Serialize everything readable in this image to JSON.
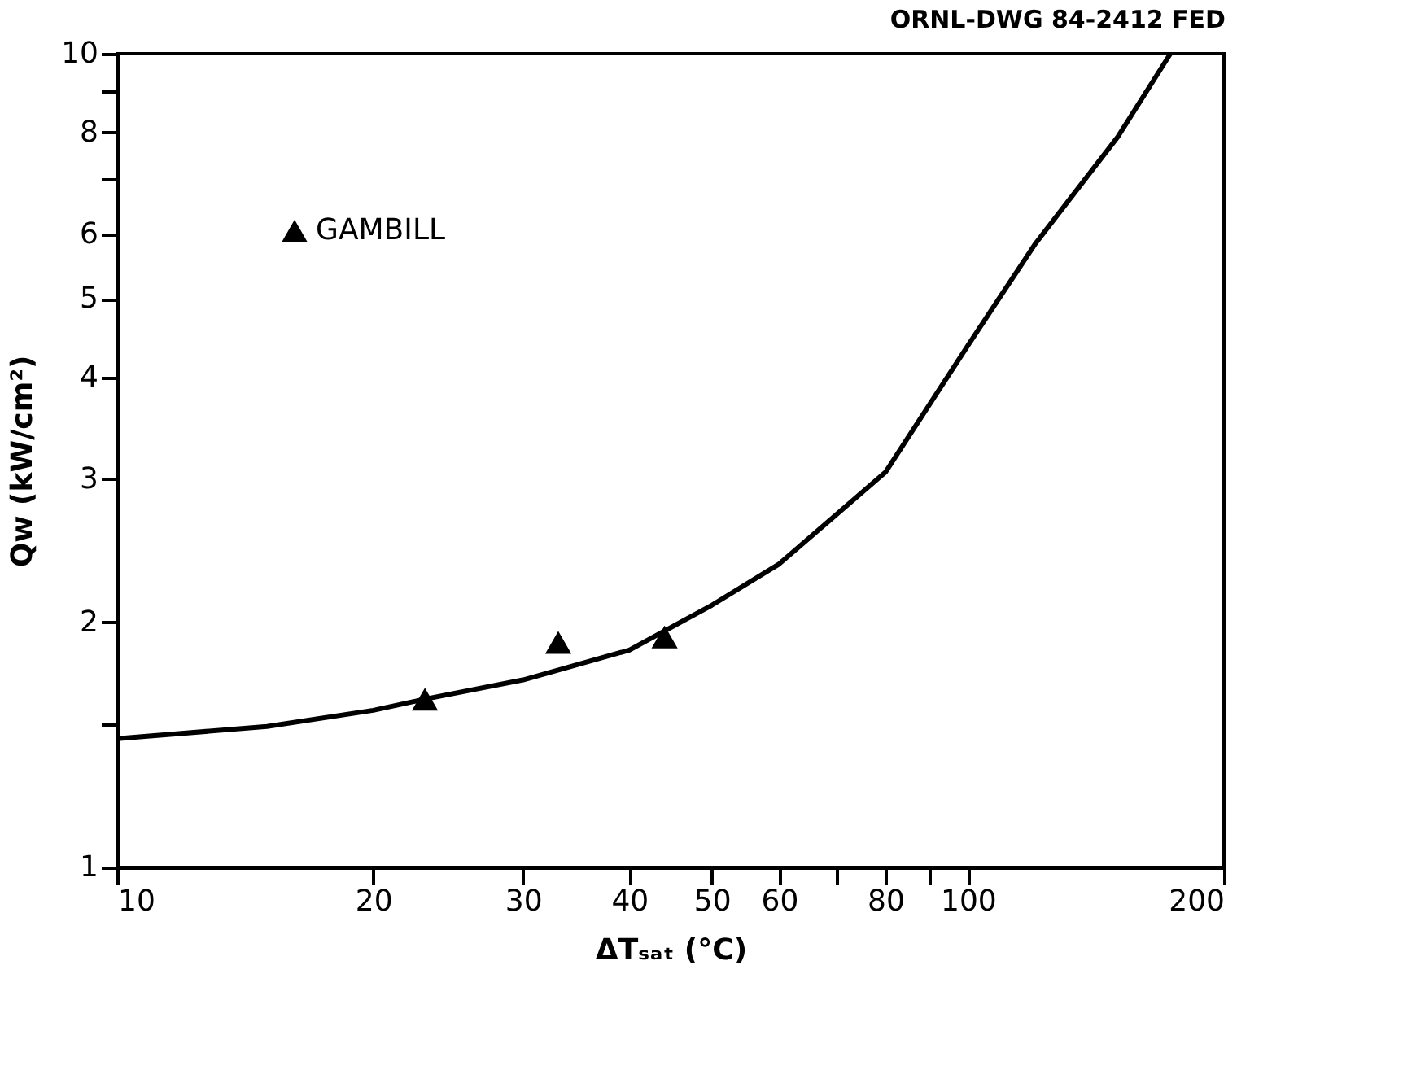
{
  "chart_data": {
    "type": "line",
    "xlabel": "ΔTₛₐₜ (°C)",
    "ylabel": "Qw (kW/cm²)",
    "annotations": [
      "ORNL-DWG 84-2412 FED"
    ],
    "log": "xy",
    "xlim": [
      10,
      200
    ],
    "xticks": [
      10,
      20,
      30,
      40,
      50,
      60,
      {
        "value": 70,
        "label": null
      },
      80,
      {
        "value": 90,
        "label": null
      },
      100,
      200
    ],
    "ylim": [
      1,
      10
    ],
    "yticks": [
      1,
      {
        "value": 1.5,
        "label": null
      },
      2,
      3,
      4,
      5,
      6,
      {
        "value": 7,
        "label": null
      },
      8,
      {
        "value": 9,
        "label": null
      },
      10
    ],
    "grid": false,
    "legend": "top left",
    "series": [
      {
        "color": "#000000",
        "line_style": "solid",
        "marker": "none",
        "x": [
          10,
          15,
          20,
          23,
          30,
          40,
          50,
          60,
          80,
          100,
          120,
          150,
          173
        ],
        "values": [
          1.44,
          1.49,
          1.56,
          1.61,
          1.7,
          1.85,
          2.1,
          2.36,
          3.06,
          4.38,
          5.84,
          7.9,
          10
        ]
      },
      {
        "type": "scatter",
        "name": "GAMBILL",
        "color": "#000000",
        "marker": "triangle",
        "x": [
          23,
          33,
          44
        ],
        "values": [
          1.61,
          1.89,
          1.92
        ]
      }
    ]
  }
}
